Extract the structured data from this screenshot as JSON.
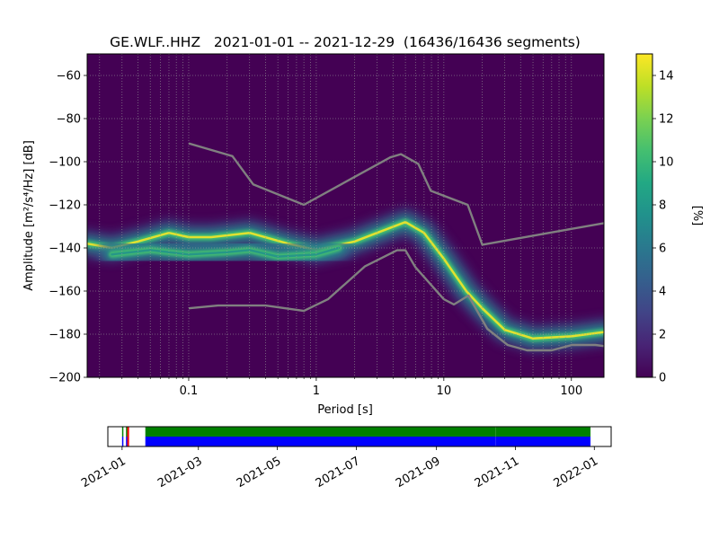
{
  "chart_data": [
    {
      "type": "heatmap",
      "title": "GE.WLF..HHZ   2021-01-01 -- 2021-12-29  (16436/16436 segments)",
      "xlabel": "Period [s]",
      "ylabel": "Amplitude [m²/s⁴/Hz] [dB]",
      "x_scale": "log",
      "xlim": [
        0.016,
        180
      ],
      "ylim": [
        -200,
        -50
      ],
      "x_ticks": [
        {
          "value": 0.1,
          "label": "0.1"
        },
        {
          "value": 1,
          "label": "1"
        },
        {
          "value": 10,
          "label": "10"
        },
        {
          "value": 100,
          "label": "100"
        }
      ],
      "y_ticks": [
        {
          "value": -60,
          "label": "−60"
        },
        {
          "value": -80,
          "label": "−80"
        },
        {
          "value": -100,
          "label": "−100"
        },
        {
          "value": -120,
          "label": "−120"
        },
        {
          "value": -140,
          "label": "−140"
        },
        {
          "value": -160,
          "label": "−160"
        },
        {
          "value": -180,
          "label": "−180"
        },
        {
          "value": -200,
          "label": "−200"
        }
      ],
      "grid": true,
      "colormap": "viridis",
      "colorbar": {
        "label": "[%]",
        "range": [
          0,
          15
        ],
        "ticks": [
          {
            "value": 0,
            "label": "0"
          },
          {
            "value": 2,
            "label": "2"
          },
          {
            "value": 4,
            "label": "4"
          },
          {
            "value": 6,
            "label": "6"
          },
          {
            "value": 8,
            "label": "8"
          },
          {
            "value": 10,
            "label": "10"
          },
          {
            "value": 12,
            "label": "12"
          },
          {
            "value": 14,
            "label": "14"
          }
        ]
      },
      "background_color": "#440154",
      "density_ridges": [
        {
          "points": [
            [
              0.016,
              -138
            ],
            [
              0.025,
              -140
            ],
            [
              0.04,
              -137
            ],
            [
              0.07,
              -133
            ],
            [
              0.1,
              -135
            ],
            [
              0.15,
              -135
            ],
            [
              0.3,
              -133
            ],
            [
              0.6,
              -138
            ],
            [
              1,
              -141
            ],
            [
              2,
              -137
            ],
            [
              3,
              -133
            ],
            [
              5,
              -128
            ],
            [
              7,
              -133
            ],
            [
              10,
              -145
            ],
            [
              15,
              -160
            ],
            [
              20,
              -168
            ],
            [
              30,
              -178
            ],
            [
              50,
              -182
            ],
            [
              100,
              -181
            ],
            [
              180,
              -179
            ]
          ],
          "peak": 15
        },
        {
          "points": [
            [
              0.025,
              -143
            ],
            [
              0.05,
              -141
            ],
            [
              0.1,
              -143
            ],
            [
              0.2,
              -142
            ],
            [
              0.3,
              -141
            ],
            [
              0.5,
              -144
            ],
            [
              1,
              -143
            ],
            [
              1.5,
              -140
            ]
          ],
          "peak": 8
        }
      ],
      "noise_models": [
        {
          "name": "high",
          "color": "#808080",
          "points": [
            [
              0.1,
              -91.5
            ],
            [
              0.22,
              -97.4
            ],
            [
              0.32,
              -110.5
            ],
            [
              0.8,
              -120
            ],
            [
              3.8,
              -98
            ],
            [
              4.6,
              -96.5
            ],
            [
              6.3,
              -101
            ],
            [
              7.9,
              -113.5
            ],
            [
              15.4,
              -120
            ],
            [
              20,
              -138.5
            ],
            [
              180,
              -128.5
            ]
          ]
        },
        {
          "name": "low",
          "color": "#808080",
          "points": [
            [
              0.1,
              -168
            ],
            [
              0.17,
              -166.7
            ],
            [
              0.4,
              -166.7
            ],
            [
              0.8,
              -169.2
            ],
            [
              1.24,
              -163.7
            ],
            [
              2.4,
              -148.6
            ],
            [
              4.3,
              -141.1
            ],
            [
              5.0,
              -141.1
            ],
            [
              6.0,
              -149
            ],
            [
              10,
              -163.8
            ],
            [
              12,
              -166.2
            ],
            [
              15.6,
              -162.1
            ],
            [
              21.9,
              -177.5
            ],
            [
              31.6,
              -185
            ],
            [
              45,
              -187.5
            ],
            [
              70,
              -187.5
            ],
            [
              101,
              -185
            ],
            [
              154,
              -185
            ],
            [
              180,
              -185.5
            ]
          ]
        }
      ]
    },
    {
      "type": "timeline",
      "x_scale": "date",
      "xlim": [
        "2020-12-21",
        "2022-01-14"
      ],
      "x_ticks": [
        {
          "value": "2021-01-01",
          "label": "2021-01"
        },
        {
          "value": "2021-03-01",
          "label": "2021-03"
        },
        {
          "value": "2021-05-01",
          "label": "2021-05"
        },
        {
          "value": "2021-07-01",
          "label": "2021-07"
        },
        {
          "value": "2021-09-01",
          "label": "2021-09"
        },
        {
          "value": "2021-11-01",
          "label": "2021-11"
        },
        {
          "value": "2022-01-01",
          "label": "2022-01"
        }
      ],
      "tracks": [
        {
          "name": "data",
          "color": "#008000",
          "spans": [
            [
              "2021-01-01",
              "2021-01-02"
            ],
            [
              "2021-01-04",
              "2021-01-05"
            ],
            [
              "2021-01-19",
              "2021-10-17"
            ],
            [
              "2021-10-17",
              "2021-12-29"
            ]
          ]
        },
        {
          "name": "covered",
          "color": "#0000ff",
          "spans": [
            [
              "2021-01-01",
              "2021-01-02"
            ],
            [
              "2021-01-04",
              "2021-01-05"
            ],
            [
              "2021-01-19",
              "2021-10-17"
            ],
            [
              "2021-10-17",
              "2021-12-29"
            ]
          ]
        }
      ],
      "markers": [
        {
          "date": "2021-01-05",
          "color": "#ff0000"
        }
      ]
    }
  ]
}
